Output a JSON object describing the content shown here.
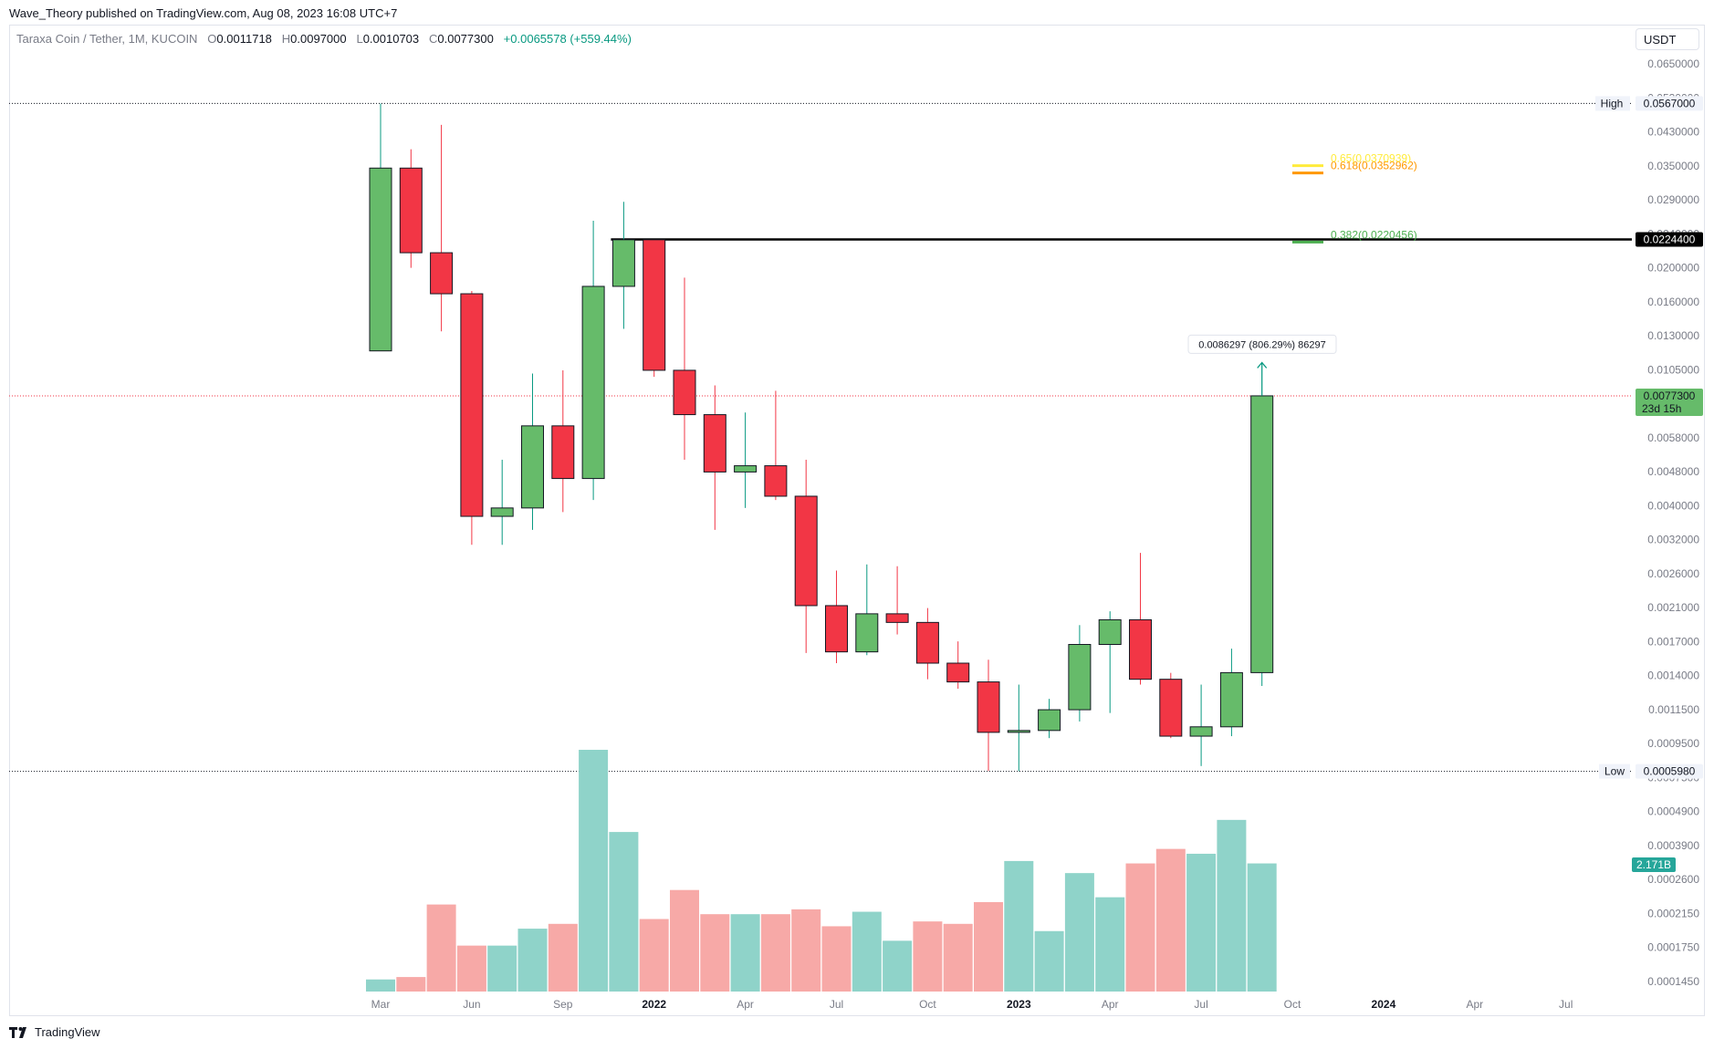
{
  "publisher_line": "Wave_Theory published on TradingView.com, Aug 08, 2023 16:08 UTC+7",
  "legend": {
    "symbol": "Taraxa Coin / Tether, 1M, KUCOIN",
    "o_label": "O",
    "o": "0.0011718",
    "h_label": "H",
    "h": "0.0097000",
    "l_label": "L",
    "l": "0.0010703",
    "c_label": "C",
    "c": "0.0077300",
    "change": "+0.0065578 (+559.44%)"
  },
  "currency_button": "USDT",
  "footer_brand": "TradingView",
  "colors": {
    "up": "#089981",
    "down": "#f23645",
    "up_fill": "#66bb6a",
    "down_fill": "#f23645",
    "vol_up": "#8fd3c9",
    "vol_down": "#f7a9a7",
    "fib_382": "#4caf50",
    "fib_618": "#ff9800",
    "fib_65": "#ffeb3b"
  },
  "chart_data": {
    "type": "candlestick",
    "scale": "log",
    "ylim": [
      0.000135,
      0.072
    ],
    "x_tick_labels": [
      "Mar",
      "Jun",
      "Sep",
      "2022",
      "Apr",
      "Jul",
      "Oct",
      "2023",
      "Apr",
      "Jul",
      "Oct",
      "2024",
      "Apr",
      "Jul"
    ],
    "y_tick_labels": [
      "0.0650000",
      "0.0530000",
      "0.0430000",
      "0.0350000",
      "0.0290000",
      "0.0240000",
      "0.0200000",
      "0.0160000",
      "0.0130000",
      "0.0105000",
      "0.0085000",
      "0.0058000",
      "0.0048000",
      "0.0040000",
      "0.0032000",
      "0.0026000",
      "0.0021000",
      "0.0017000",
      "0.0014000",
      "0.0011500",
      "0.0009500",
      "0.0007500",
      "0.0004900",
      "0.0003900",
      "0.0002600",
      "0.0002150",
      "0.0001750",
      "0.0001450"
    ],
    "candles": [
      {
        "t": "2021-03",
        "o": 0.0105,
        "h": 0.0567,
        "l": 0.0105,
        "c": 0.0365
      },
      {
        "t": "2021-04",
        "o": 0.0365,
        "h": 0.0415,
        "l": 0.0185,
        "c": 0.0205
      },
      {
        "t": "2021-05",
        "o": 0.0205,
        "h": 0.049,
        "l": 0.012,
        "c": 0.0155
      },
      {
        "t": "2021-06",
        "o": 0.0155,
        "h": 0.0158,
        "l": 0.0028,
        "c": 0.0034
      },
      {
        "t": "2021-07",
        "o": 0.0034,
        "h": 0.005,
        "l": 0.0028,
        "c": 0.0036
      },
      {
        "t": "2021-08",
        "o": 0.0036,
        "h": 0.009,
        "l": 0.0031,
        "c": 0.0063
      },
      {
        "t": "2021-09",
        "o": 0.0063,
        "h": 0.0092,
        "l": 0.0035,
        "c": 0.0044
      },
      {
        "t": "2021-10",
        "o": 0.0044,
        "h": 0.0255,
        "l": 0.0038,
        "c": 0.0163
      },
      {
        "t": "2021-11",
        "o": 0.0163,
        "h": 0.029,
        "l": 0.0122,
        "c": 0.0224
      },
      {
        "t": "2021-12",
        "o": 0.0224,
        "h": 0.0224,
        "l": 0.0088,
        "c": 0.0092
      },
      {
        "t": "2022-01",
        "o": 0.0092,
        "h": 0.0173,
        "l": 0.005,
        "c": 0.0068
      },
      {
        "t": "2022-02",
        "o": 0.0068,
        "h": 0.0083,
        "l": 0.0031,
        "c": 0.0046
      },
      {
        "t": "2022-03",
        "o": 0.0046,
        "h": 0.0069,
        "l": 0.0036,
        "c": 0.0048
      },
      {
        "t": "2022-04",
        "o": 0.0048,
        "h": 0.008,
        "l": 0.0038,
        "c": 0.0039
      },
      {
        "t": "2022-05",
        "o": 0.0039,
        "h": 0.005,
        "l": 0.00134,
        "c": 0.00185
      },
      {
        "t": "2022-06",
        "o": 0.00185,
        "h": 0.00235,
        "l": 0.00125,
        "c": 0.00135
      },
      {
        "t": "2022-07",
        "o": 0.00135,
        "h": 0.00245,
        "l": 0.00132,
        "c": 0.00175
      },
      {
        "t": "2022-08",
        "o": 0.00175,
        "h": 0.00242,
        "l": 0.00152,
        "c": 0.00165
      },
      {
        "t": "2022-09",
        "o": 0.00165,
        "h": 0.00182,
        "l": 0.00112,
        "c": 0.00125
      },
      {
        "t": "2022-10",
        "o": 0.00125,
        "h": 0.00145,
        "l": 0.00105,
        "c": 0.0011
      },
      {
        "t": "2022-11",
        "o": 0.0011,
        "h": 0.00128,
        "l": 0.0006,
        "c": 0.00078
      },
      {
        "t": "2022-12",
        "o": 0.00078,
        "h": 0.00108,
        "l": 0.000598,
        "c": 0.00079
      },
      {
        "t": "2023-01",
        "o": 0.00079,
        "h": 0.00098,
        "l": 0.00075,
        "c": 0.00091
      },
      {
        "t": "2023-02",
        "o": 0.00091,
        "h": 0.00162,
        "l": 0.00084,
        "c": 0.00142
      },
      {
        "t": "2023-03",
        "o": 0.00142,
        "h": 0.00178,
        "l": 0.00089,
        "c": 0.00168
      },
      {
        "t": "2023-04",
        "o": 0.00168,
        "h": 0.00265,
        "l": 0.00108,
        "c": 0.00112
      },
      {
        "t": "2023-05",
        "o": 0.00112,
        "h": 0.00117,
        "l": 0.00075,
        "c": 0.00076
      },
      {
        "t": "2023-06",
        "o": 0.00076,
        "h": 0.00108,
        "l": 0.00062,
        "c": 0.00081
      },
      {
        "t": "2023-07",
        "o": 0.00081,
        "h": 0.00138,
        "l": 0.00076,
        "c": 0.0011718
      },
      {
        "t": "2023-08",
        "o": 0.0011718,
        "h": 0.0097,
        "l": 0.0010703,
        "c": 0.00773
      }
    ],
    "volume": [
      {
        "v": 0.05,
        "up": true
      },
      {
        "v": 0.06,
        "up": false
      },
      {
        "v": 0.36,
        "up": false
      },
      {
        "v": 0.19,
        "up": false
      },
      {
        "v": 0.19,
        "up": true
      },
      {
        "v": 0.26,
        "up": true
      },
      {
        "v": 0.28,
        "up": false
      },
      {
        "v": 1.0,
        "up": true
      },
      {
        "v": 0.66,
        "up": true
      },
      {
        "v": 0.3,
        "up": false
      },
      {
        "v": 0.42,
        "up": false
      },
      {
        "v": 0.32,
        "up": false
      },
      {
        "v": 0.32,
        "up": true
      },
      {
        "v": 0.32,
        "up": false
      },
      {
        "v": 0.34,
        "up": false
      },
      {
        "v": 0.27,
        "up": false
      },
      {
        "v": 0.33,
        "up": true
      },
      {
        "v": 0.21,
        "up": true
      },
      {
        "v": 0.29,
        "up": false
      },
      {
        "v": 0.28,
        "up": false
      },
      {
        "v": 0.37,
        "up": false
      },
      {
        "v": 0.54,
        "up": true
      },
      {
        "v": 0.25,
        "up": true
      },
      {
        "v": 0.49,
        "up": true
      },
      {
        "v": 0.39,
        "up": true
      },
      {
        "v": 0.53,
        "up": false
      },
      {
        "v": 0.59,
        "up": false
      },
      {
        "v": 0.57,
        "up": true
      },
      {
        "v": 0.71,
        "up": true
      },
      {
        "v": 0.53,
        "up": true
      }
    ],
    "high_line": {
      "label": "High",
      "value": 0.0567,
      "value_label": "0.0567000"
    },
    "low_line": {
      "label": "Low",
      "value": 0.000598,
      "value_label": "0.0005980"
    },
    "resistance_line": {
      "value": 0.02244,
      "value_label": "0.0224400"
    },
    "current_price": {
      "value": 0.00773,
      "value_label": "0.0077300",
      "countdown": "23d 15h"
    },
    "volume_badge": "2.171B",
    "fib_levels": [
      {
        "ratio": 0.382,
        "value": 0.0220456,
        "label": "0.382(0.0220456)",
        "color": "#4caf50"
      },
      {
        "ratio": 0.618,
        "value": 0.0352962,
        "label": "0.618(0.0352962)",
        "color": "#ff9800"
      },
      {
        "ratio": 0.65,
        "value": 0.0370939,
        "label": "0.65(0.0370939)",
        "color": "#ffeb3b"
      }
    ],
    "measure_label": "0.0086297 (806.29%) 86297"
  }
}
